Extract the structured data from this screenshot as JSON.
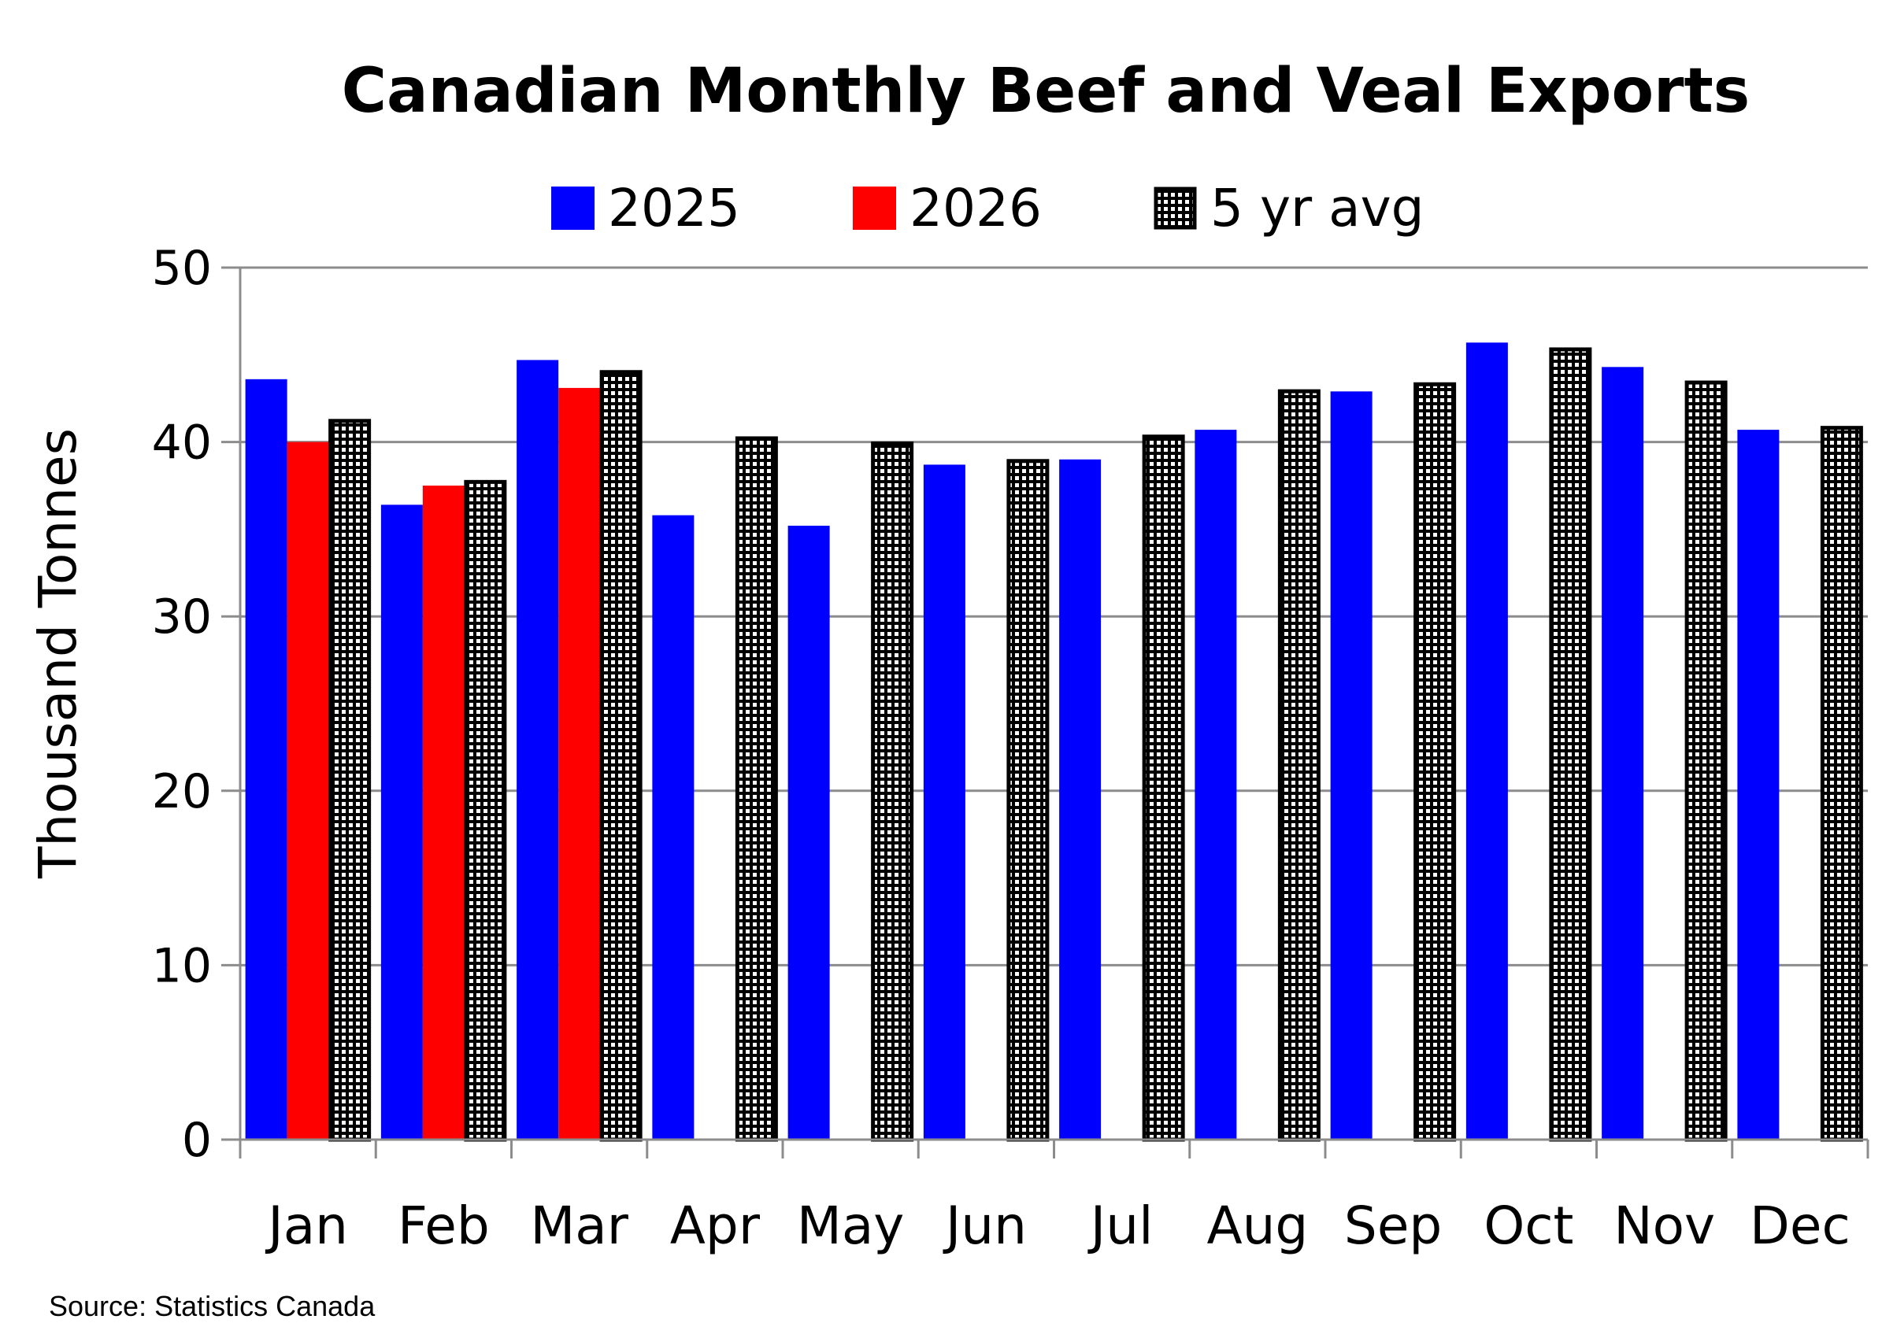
{
  "chart_data": {
    "type": "bar",
    "title": "Canadian Monthly Beef and Veal Exports",
    "ylabel": "Thousand Tonnes",
    "xlabel": "",
    "ylim": [
      0,
      50
    ],
    "yticks": [
      0,
      10,
      20,
      30,
      40,
      50
    ],
    "grid": true,
    "legend_position": "top",
    "categories": [
      "Jan",
      "Feb",
      "Mar",
      "Apr",
      "May",
      "Jun",
      "Jul",
      "Aug",
      "Sep",
      "Oct",
      "Nov",
      "Dec"
    ],
    "series": [
      {
        "name": "2025",
        "color": "#0000ff",
        "values": [
          43.6,
          36.4,
          44.7,
          35.8,
          35.2,
          38.7,
          39.0,
          40.7,
          42.9,
          45.7,
          44.3,
          40.7
        ]
      },
      {
        "name": "2026",
        "color": "#ff0000",
        "values": [
          40.0,
          37.5,
          43.1,
          null,
          null,
          null,
          null,
          null,
          null,
          null,
          null,
          null
        ]
      },
      {
        "name": "5 yr avg",
        "color": "#000000",
        "pattern": "dotted",
        "values": [
          41.3,
          37.8,
          44.1,
          40.3,
          40.0,
          39.0,
          40.4,
          43.0,
          43.4,
          45.4,
          43.5,
          40.9
        ]
      }
    ],
    "source": "Source: Statistics Canada"
  }
}
